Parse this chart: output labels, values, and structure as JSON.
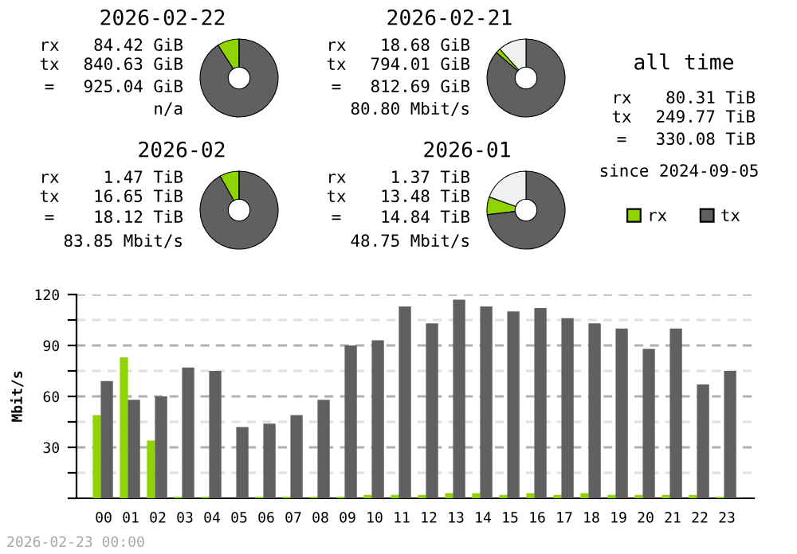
{
  "chart_data": [
    {
      "type": "donut",
      "title": "2026-02-22",
      "categories": [
        null,
        null,
        null
      ],
      "values": [
        9.1,
        90.9,
        0
      ],
      "colors": [
        "#8fd400",
        "#606060",
        "#f0f0f0"
      ],
      "annotations": [
        "rx",
        "84.42 GiB",
        "tx",
        "840.63 GiB",
        "=",
        "925.04 GiB",
        "n/a"
      ]
    },
    {
      "type": "donut",
      "title": "2026-02-21",
      "categories": [
        null,
        null,
        null
      ],
      "values": [
        2.0,
        86.3,
        11.7
      ],
      "colors": [
        "#8fd400",
        "#606060",
        "#f0f0f0"
      ],
      "annotations": [
        "rx",
        "18.68 GiB",
        "tx",
        "794.01 GiB",
        "=",
        "812.69 GiB",
        "80.80 Mbit/s"
      ]
    },
    {
      "type": "donut",
      "title": "2026-02",
      "categories": [
        null,
        null,
        null
      ],
      "values": [
        8.1,
        91.9,
        0
      ],
      "colors": [
        "#8fd400",
        "#606060",
        "#f0f0f0"
      ],
      "annotations": [
        "rx",
        "1.47 TiB",
        "tx",
        "16.65 TiB",
        "=",
        "18.12 TiB",
        "83.85 Mbit/s"
      ]
    },
    {
      "type": "donut",
      "title": "2026-01",
      "categories": [
        null,
        null,
        null
      ],
      "values": [
        7.4,
        73.1,
        19.5
      ],
      "colors": [
        "#8fd400",
        "#606060",
        "#f0f0f0"
      ],
      "annotations": [
        "rx",
        "1.37 TiB",
        "tx",
        "13.48 TiB",
        "=",
        "14.84 TiB",
        "48.75 Mbit/s"
      ]
    },
    {
      "type": "other",
      "title": "all time",
      "annotations": [
        "rx",
        "80.31 TiB",
        "tx",
        "249.77 TiB",
        "=",
        "330.08 TiB",
        "since 2024-09-05"
      ]
    },
    {
      "type": "bar",
      "ylabel": "Mbit/s",
      "categories": [
        "00",
        "01",
        "02",
        "03",
        "04",
        "05",
        "06",
        "07",
        "08",
        "09",
        "10",
        "11",
        "12",
        "13",
        "14",
        "15",
        "16",
        "17",
        "18",
        "19",
        "20",
        "21",
        "22",
        "23"
      ],
      "series": [
        {
          "name": "rx",
          "color": "#8fd400",
          "values": [
            49,
            83,
            34,
            1,
            1,
            0,
            1,
            1,
            1,
            1,
            2,
            2,
            2,
            3,
            3,
            2,
            3,
            2,
            3,
            2,
            2,
            2,
            2,
            1
          ]
        },
        {
          "name": "tx",
          "color": "#606060",
          "values": [
            69,
            58,
            60,
            77,
            75,
            42,
            44,
            49,
            58,
            90,
            93,
            113,
            103,
            117,
            113,
            110,
            112,
            106,
            103,
            100,
            88,
            100,
            67,
            75
          ]
        }
      ],
      "ylim": [
        0,
        120
      ],
      "yticks": [
        {
          "value": 0,
          "label": null
        },
        {
          "value": 15,
          "label": null
        },
        30,
        {
          "value": 45,
          "label": null
        },
        60,
        {
          "value": 75,
          "label": null
        },
        90,
        {
          "value": 105,
          "label": null
        },
        120
      ],
      "grid": "y",
      "legend": "top right",
      "annotations": [
        "2026-02-23 00:00"
      ]
    }
  ]
}
